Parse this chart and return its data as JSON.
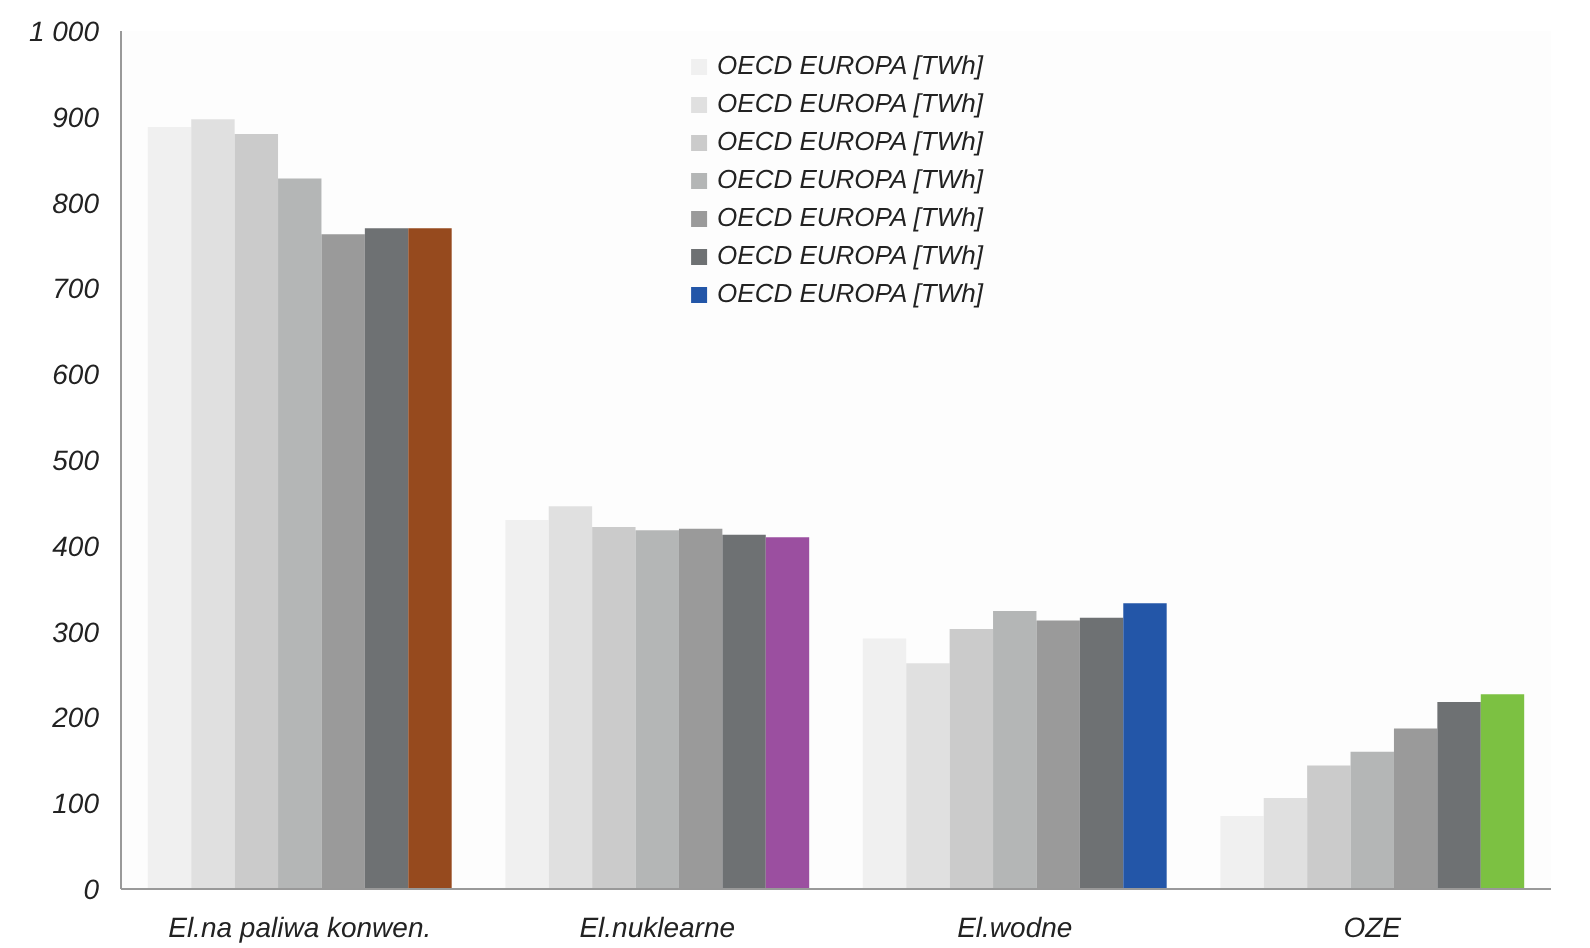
{
  "chart_data": {
    "type": "bar",
    "categories": [
      "El.na paliwa konwen.",
      "El.nuklearne",
      "El.wodne",
      "OZE"
    ],
    "series": [
      {
        "name": "OECD EUROPA [TWh]",
        "color": "#f0f0f0",
        "values": [
          888,
          430,
          292,
          85
        ]
      },
      {
        "name": "OECD EUROPA [TWh]",
        "color": "#e0e0e0",
        "values": [
          897,
          446,
          263,
          106
        ]
      },
      {
        "name": "OECD EUROPA [TWh]",
        "color": "#cbcbcb",
        "values": [
          880,
          422,
          303,
          144
        ]
      },
      {
        "name": "OECD EUROPA [TWh]",
        "color": "#b4b6b6",
        "values": [
          828,
          418,
          324,
          160
        ]
      },
      {
        "name": "OECD EUROPA [TWh]",
        "color": "#9a9a9a",
        "values": [
          763,
          420,
          313,
          187
        ]
      },
      {
        "name": "OECD EUROPA [TWh]",
        "color": "#6e7173",
        "values": [
          770,
          413,
          316,
          218
        ]
      },
      {
        "name": "OECD EUROPA [TWh]",
        "color": "#2356a8",
        "colors": [
          "#964a1e",
          "#9b4fa0",
          "#2356a8",
          "#7cc142"
        ],
        "values": [
          770,
          410,
          333,
          227
        ]
      }
    ],
    "ylim": [
      0,
      1000
    ],
    "yticks": [
      0,
      100,
      200,
      300,
      400,
      500,
      600,
      700,
      800,
      900,
      {
        "value": 1000,
        "label": "1 000"
      }
    ],
    "legend": "top"
  }
}
